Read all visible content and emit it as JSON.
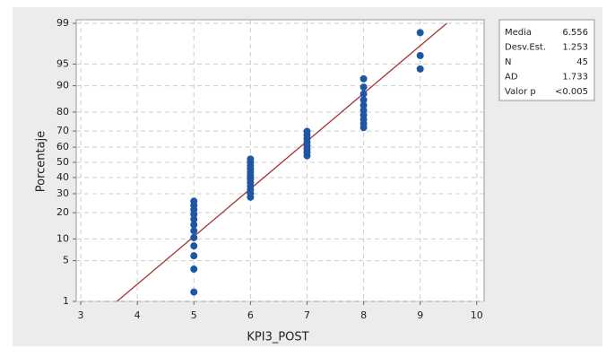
{
  "chart_data": {
    "type": "scatter",
    "x_label": "KPI3_POST",
    "y_label": "Porcentaje",
    "x": [
      5,
      5,
      5,
      5,
      5,
      5,
      5,
      5,
      5,
      5,
      5,
      5,
      6,
      6,
      6,
      6,
      6,
      6,
      6,
      6,
      6,
      6,
      6,
      6,
      7,
      7,
      7,
      7,
      7,
      7,
      7,
      7,
      8,
      8,
      8,
      8,
      8,
      8,
      8,
      8,
      8,
      8,
      9,
      9,
      9
    ],
    "values": [
      1.5,
      3.7,
      5.9,
      8.1,
      10.4,
      12.6,
      14.8,
      17.0,
      19.2,
      21.4,
      23.6,
      25.8,
      28.0,
      30.2,
      32.4,
      34.6,
      36.8,
      39.0,
      41.2,
      43.4,
      45.6,
      47.8,
      50.0,
      52.2,
      54.4,
      56.6,
      58.8,
      61.0,
      63.2,
      65.4,
      67.6,
      69.8,
      72.0,
      74.2,
      76.4,
      78.6,
      80.8,
      83.0,
      85.2,
      87.4,
      89.6,
      91.9,
      94.1,
      96.3,
      98.5
    ],
    "color": "#1f56a3",
    "fit_line": {
      "x": [
        3.64,
        9.47
      ],
      "values": [
        1,
        99
      ],
      "color": "#a83232"
    },
    "xlim": [
      2.92,
      10.13
    ],
    "xticks": [
      3,
      4,
      5,
      6,
      7,
      8,
      9,
      10
    ],
    "ylim": [
      1,
      99.15
    ],
    "yticks": [
      1,
      5,
      10,
      20,
      30,
      40,
      50,
      60,
      70,
      80,
      90,
      95,
      99
    ],
    "y_scale": "normal-probability",
    "grid": true,
    "stats": [
      [
        "Media",
        "6.556"
      ],
      [
        "Desv.Est.",
        "1.253"
      ],
      [
        "N",
        "45"
      ],
      [
        "AD",
        "1.733"
      ],
      [
        "Valor p",
        "<0.005"
      ]
    ]
  }
}
